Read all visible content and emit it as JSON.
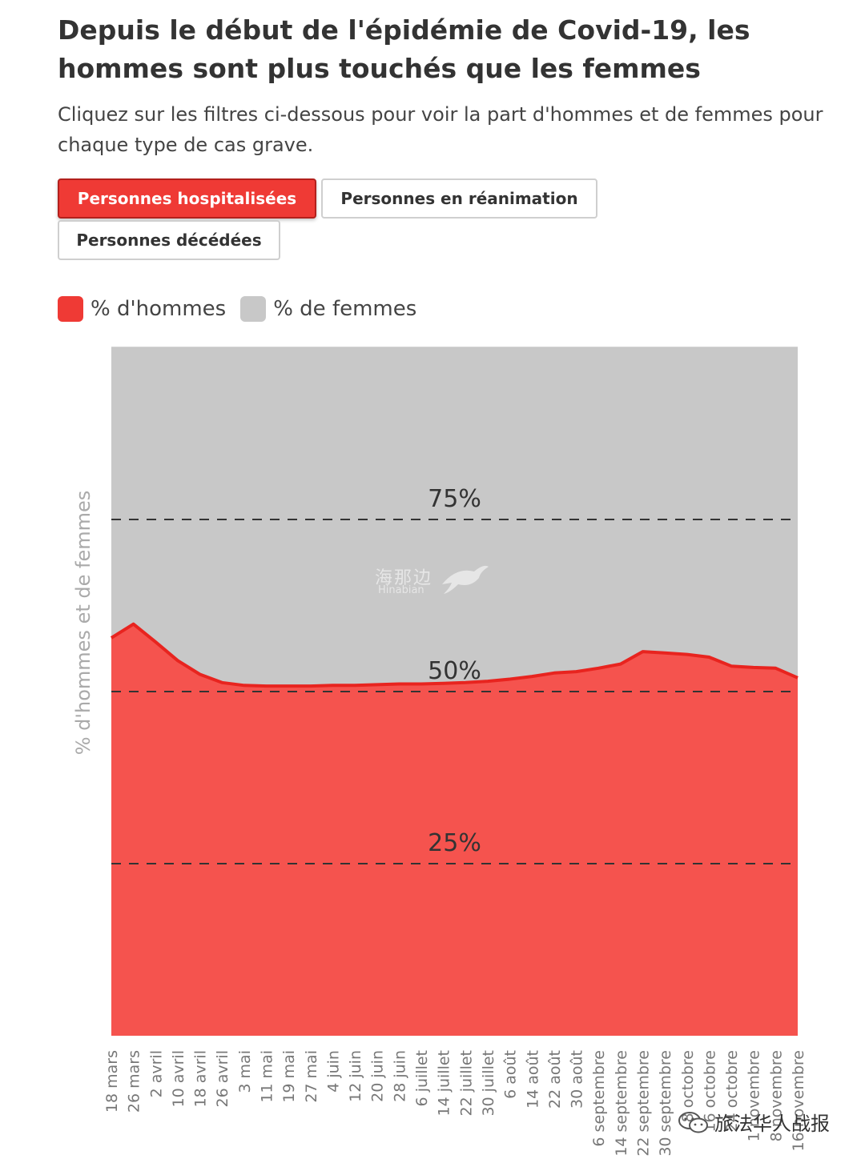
{
  "header": {
    "title": "Depuis le début de l'épidémie de Covid-19, les hommes sont plus touchés que les femmes",
    "subtitle": "Cliquez sur les filtres ci-dessous pour voir la part d'hommes et de femmes pour chaque type de cas grave."
  },
  "filters": {
    "hospitalised": "Personnes hospitalisées",
    "icu": "Personnes en réanimation",
    "deceased": "Personnes décédées",
    "active_color": "#ef3a35"
  },
  "legend": {
    "men": {
      "label": "% d'hommes",
      "color": "#ef3a35"
    },
    "women": {
      "label": "% de femmes",
      "color": "#c8c8c8"
    }
  },
  "watermark": {
    "cn": "海那边",
    "en": "Hinabian"
  },
  "credit": {
    "text": "旅法华人战报",
    "icon": "wechat-icon"
  },
  "chart_data": {
    "type": "area",
    "title": "",
    "xlabel": "",
    "ylabel": "% d'hommes et de femmes",
    "ylim": [
      0,
      100
    ],
    "stacked": true,
    "grid_lines": [
      {
        "value": 75,
        "label": "75%"
      },
      {
        "value": 50,
        "label": "50%"
      },
      {
        "value": 25,
        "label": "25%"
      }
    ],
    "x_ticks": [
      "18 mars",
      "26 mars",
      "2 avril",
      "10 avril",
      "18 avril",
      "26 avril",
      "3 mai",
      "11 mai",
      "19 mai",
      "27 mai",
      "4 juin",
      "12 juin",
      "20 juin",
      "28 juin",
      "6 juillet",
      "14 juillet",
      "22 juillet",
      "30 juillet",
      "6 août",
      "14 août",
      "22 août",
      "30 août",
      "6 septembre",
      "14 septembre",
      "22 septembre",
      "30 septembre",
      "8 octobre",
      "16 octobre",
      "24 octobre",
      "1 novembre",
      "8 novembre",
      "16 novembre"
    ],
    "series": [
      {
        "name": "% d'hommes",
        "color": "#ef3a35",
        "values": [
          57.8,
          59.8,
          57.2,
          54.5,
          52.5,
          51.3,
          50.9,
          50.8,
          50.8,
          50.8,
          50.9,
          50.9,
          51.0,
          51.1,
          51.1,
          51.2,
          51.3,
          51.5,
          51.8,
          52.2,
          52.7,
          52.9,
          53.4,
          54.0,
          55.8,
          55.6,
          55.4,
          55.0,
          53.7,
          53.5,
          53.4,
          52.0
        ]
      },
      {
        "name": "% de femmes",
        "color": "#c8c8c8",
        "values": [
          42.2,
          40.2,
          42.8,
          45.5,
          47.5,
          48.7,
          49.1,
          49.2,
          49.2,
          49.2,
          49.1,
          49.1,
          49.0,
          48.9,
          48.9,
          48.8,
          48.7,
          48.5,
          48.2,
          47.8,
          47.3,
          47.1,
          46.6,
          46.0,
          44.2,
          44.4,
          44.6,
          45.0,
          46.3,
          46.5,
          46.6,
          48.0
        ]
      }
    ]
  }
}
